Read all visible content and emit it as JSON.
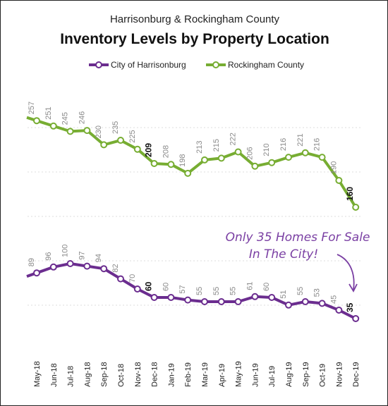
{
  "chart_data": {
    "type": "line",
    "subtitle": "Harrisonburg & Rockingham County",
    "title": "Inventory Levels by Property Location",
    "categories": [
      "May-18",
      "Jun-18",
      "Jul-18",
      "Aug-18",
      "Sep-18",
      "Oct-18",
      "Nov-18",
      "Dec-18",
      "Jan-19",
      "Feb-19",
      "Mar-19",
      "Apr-19",
      "May-19",
      "Jun-19",
      "Jul-19",
      "Aug-19",
      "Sep-19",
      "Oct-19",
      "Nov-19",
      "Dec-19"
    ],
    "series": [
      {
        "name": "City of Harrisonburg",
        "color": "#6b2d8f",
        "values": [
          89,
          96,
          100,
          97,
          94,
          82,
          70,
          60,
          60,
          57,
          55,
          55,
          55,
          61,
          60,
          51,
          55,
          53,
          45,
          35
        ],
        "bold_labels": [
          7,
          19
        ]
      },
      {
        "name": "Rockingham County",
        "color": "#77ad32",
        "values": [
          257,
          251,
          245,
          246,
          230,
          235,
          225,
          209,
          208,
          198,
          213,
          215,
          222,
          206,
          210,
          216,
          221,
          216,
          190,
          160
        ],
        "bold_labels": [
          7,
          19
        ]
      }
    ],
    "legend_position": "top",
    "grid": true,
    "annotation": {
      "lines": [
        "Only 35 Homes For Sale",
        "In The City!"
      ],
      "color": "#7a3fa3"
    }
  }
}
